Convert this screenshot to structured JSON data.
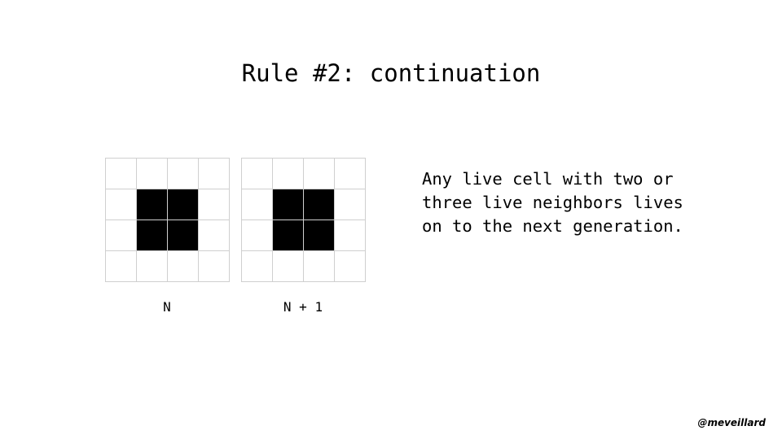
{
  "slide": {
    "title": "Rule #2: continuation",
    "rule_text": "Any live cell with two or\nthree live neighbors lives\non to the next generation.",
    "handle": "@meveillard"
  },
  "grids": {
    "generation_n": {
      "label": "N",
      "cells": [
        [
          0,
          0,
          0,
          0
        ],
        [
          0,
          1,
          1,
          0
        ],
        [
          0,
          1,
          1,
          0
        ],
        [
          0,
          0,
          0,
          0
        ]
      ]
    },
    "generation_n_plus_1": {
      "label": "N + 1",
      "cells": [
        [
          0,
          0,
          0,
          0
        ],
        [
          0,
          1,
          1,
          0
        ],
        [
          0,
          1,
          1,
          0
        ],
        [
          0,
          0,
          0,
          0
        ]
      ]
    }
  },
  "colors": {
    "live_cell": "#000000",
    "dead_cell": "#ffffff",
    "grid_line": "#cfcfcf"
  }
}
